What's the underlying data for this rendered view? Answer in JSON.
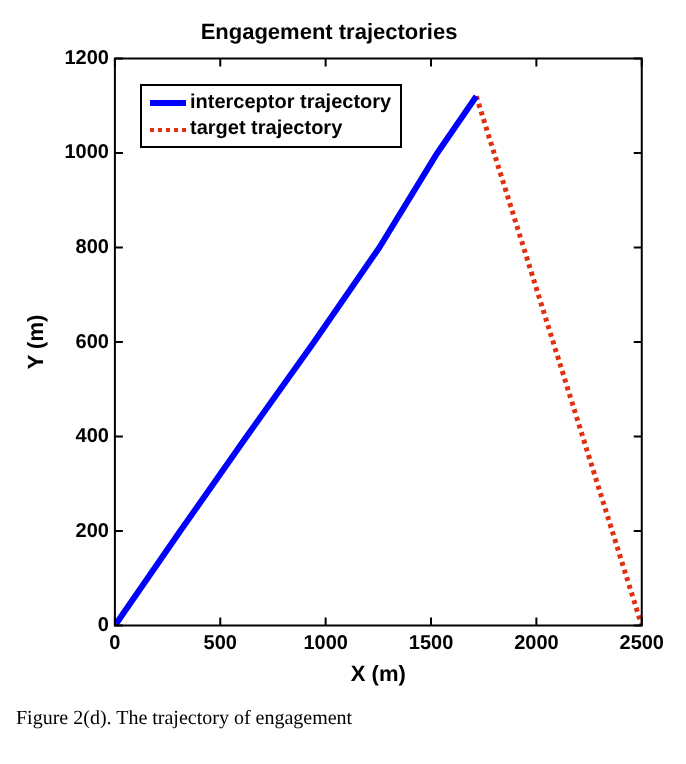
{
  "chart_data": {
    "type": "line",
    "title": "Engagement trajectories",
    "xlabel": "X (m)",
    "ylabel": "Y (m)",
    "xlim": [
      0,
      2500
    ],
    "xticks": [
      0,
      500,
      1000,
      1500,
      2000,
      2500
    ],
    "ylim": [
      0,
      1200
    ],
    "yticks": [
      0,
      200,
      400,
      600,
      800,
      1000,
      1200
    ],
    "grid": false,
    "legend": "top left",
    "marker": "none",
    "series": [
      {
        "name": "interceptor trajectory",
        "color": "#0000ff",
        "line_style": "solid",
        "x": [
          0,
          310,
          625,
          945,
          1255,
          1530,
          1715
        ],
        "values": [
          0,
          200,
          400,
          600,
          800,
          1000,
          1120
        ]
      },
      {
        "name": "target trajectory",
        "color": "#e03010",
        "line_style": "dotted",
        "x": [
          1715,
          2500
        ],
        "values": [
          1120,
          0
        ]
      }
    ],
    "annotations": [
      "Figure 2(d). The trajectory of engagement"
    ]
  }
}
